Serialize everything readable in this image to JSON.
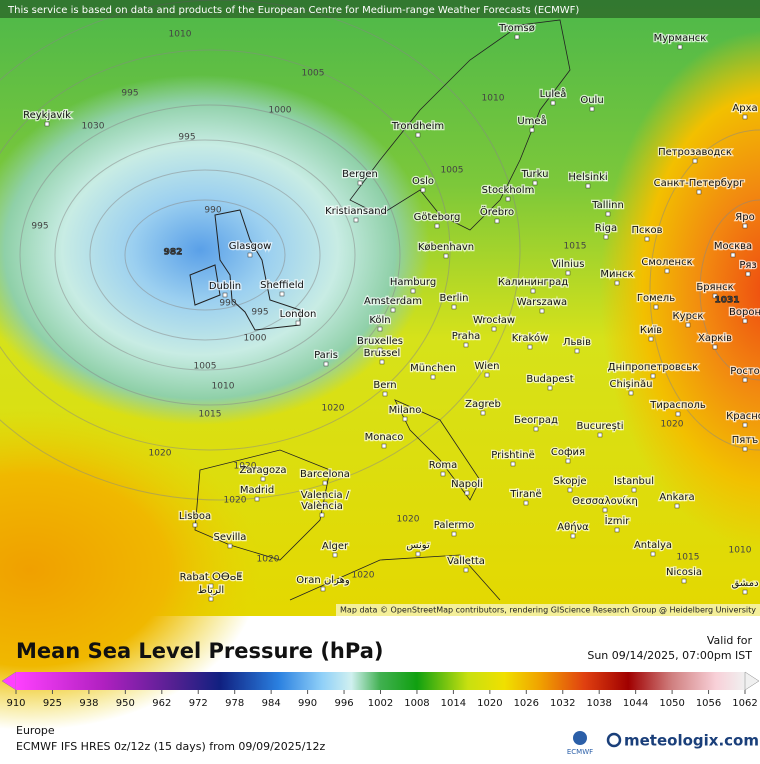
{
  "header": {
    "notice": "This service is based on data and products of the European Centre for Medium-range Weather Forecasts (ECMWF)",
    "attribution": "Map data © OpenStreetMap contributors, rendering GIScience Research Group @ Heidelberg University"
  },
  "cities": [
    "Reykjavík",
    "Tromsø",
    "Мурманск",
    "Luleå",
    "Oulu",
    "Арха",
    "Trondheim",
    "Umeå",
    "Петрозаводск",
    "Bergen",
    "Oslo",
    "Turku",
    "Helsinki",
    "Stockholm",
    "Санкт-Петербург",
    "Kristiansand",
    "Göteborg",
    "Örebro",
    "Tallinn",
    "Яро",
    "Glasgow",
    "København",
    "Riga",
    "Псков",
    "Москва",
    "Vilnius",
    "Минск",
    "Смоленск",
    "Ряз",
    "Dublin",
    "Sheffield",
    "Hamburg",
    "Калининград",
    "Брянск",
    "Гомель",
    "Berlin",
    "Amsterdam",
    "Warszawa",
    "London",
    "Köln",
    "Wrocław",
    "Курск",
    "Ворон",
    "Praha",
    "Kraków",
    "Львів",
    "Київ",
    "Харків",
    "Paris",
    "Bruxelles",
    "Brussel",
    "München",
    "Wien",
    "Дніпропетровськ",
    "Росто",
    "Budapest",
    "Chișinău",
    "Bern",
    "Milano",
    "Zagreb",
    "Тирасполь",
    "Красно",
    "Monaco",
    "Београд",
    "București",
    "Пятъ",
    "Zaragoza",
    "Barcelona",
    "Roma",
    "Prishtinë",
    "София",
    "Madrid",
    "Valencia /",
    "València",
    "Napoli",
    "Skopje",
    "Istanbul",
    "Tiranë",
    "Θεσσαλονίκη",
    "Ankara",
    "Lisboa",
    "İzmir",
    "Αθήνα",
    "Palermo",
    "Sevilla",
    "Alger",
    "تونس",
    "Antalya",
    "Valletta",
    "Nicosia",
    "Rabat ⵔⴱⴰⵟ",
    "الرباط",
    "Oran وهران",
    "دمشق"
  ],
  "isobar_labels": [
    "1010",
    "1005",
    "995",
    "1030",
    "1000",
    "995",
    "990",
    "995",
    "982",
    "990",
    "995",
    "1000",
    "1005",
    "1010",
    "1015",
    "1020",
    "1020",
    "1010",
    "1005",
    "1015",
    "1031",
    "1020",
    "1020",
    "1020",
    "1020",
    "1020",
    "1020",
    "1015",
    "1010"
  ],
  "legend": {
    "title": "Mean Sea Level Pressure (hPa)",
    "ticks": [
      910,
      925,
      938,
      950,
      962,
      972,
      978,
      984,
      990,
      996,
      1002,
      1008,
      1014,
      1020,
      1026,
      1032,
      1038,
      1044,
      1050,
      1056,
      1062
    ]
  },
  "footer": {
    "valid_label": "Valid for",
    "valid_time": "Sun 09/14/2025, 07:00pm IST",
    "region": "Europe",
    "model": "ECMWF IFS HRES 0z/12z (15 days) from  09/09/2025/12z",
    "ecmwf_logo": "ECMWF",
    "brand": "meteologix.com"
  }
}
